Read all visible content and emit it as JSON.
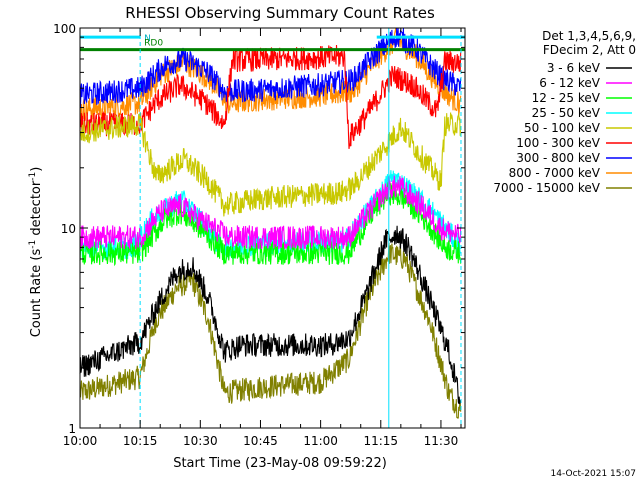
{
  "chart_data": {
    "type": "line",
    "title": "RHESSI Observing Summary Count Rates",
    "xlabel": "Start Time (23-May-08 09:59:22)",
    "ylabel": "Count Rate (s⁻¹ detector⁻¹)",
    "ylabel_base": "Count Rate (s",
    "ylabel_exp1": "-1",
    "ylabel_mid": " detector",
    "ylabel_exp2": "-1",
    "ylabel_end": ")",
    "y_scale": "log",
    "ylim": [
      1,
      100
    ],
    "xlim": [
      "10:00",
      "11:36"
    ],
    "x_ticks": [
      "10:00",
      "10:15",
      "10:30",
      "10:45",
      "11:00",
      "11:15",
      "11:30"
    ],
    "y_ticks": [
      "1",
      "10",
      "100"
    ],
    "footer_date": "14-Oct-2021 15:07",
    "legend_header": [
      "Det 1,3,4,5,6,9,",
      "FDecim 2, Att 0"
    ],
    "flag_labels": [
      "N",
      "RD0"
    ],
    "series": [
      {
        "name": "3 - 6 keV",
        "color": "#000000",
        "points": [
          [
            "10:00",
            2
          ],
          [
            "10:15",
            2.7
          ],
          [
            "10:19",
            4
          ],
          [
            "10:24",
            6
          ],
          [
            "10:28",
            6.5
          ],
          [
            "10:32",
            4.5
          ],
          [
            "10:36",
            2.4
          ],
          [
            "10:40",
            2.6
          ],
          [
            "10:55",
            2.6
          ],
          [
            "11:02",
            2.6
          ],
          [
            "11:07",
            2.8
          ],
          [
            "11:12",
            5
          ],
          [
            "11:16",
            8.5
          ],
          [
            "11:19",
            9.5
          ],
          [
            "11:22",
            8
          ],
          [
            "11:27",
            4.5
          ],
          [
            "11:32",
            2.4
          ],
          [
            "11:35",
            1.3
          ]
        ]
      },
      {
        "name": "6 - 12 keV",
        "color": "#ff00ff",
        "points": [
          [
            "10:00",
            9
          ],
          [
            "10:15",
            9
          ],
          [
            "10:20",
            12
          ],
          [
            "10:25",
            13
          ],
          [
            "10:30",
            11
          ],
          [
            "10:37",
            9
          ],
          [
            "10:45",
            9
          ],
          [
            "11:00",
            9
          ],
          [
            "11:07",
            9
          ],
          [
            "11:12",
            12
          ],
          [
            "11:17",
            16
          ],
          [
            "11:20",
            16
          ],
          [
            "11:25",
            13
          ],
          [
            "11:30",
            10
          ],
          [
            "11:35",
            9
          ]
        ]
      },
      {
        "name": "12 - 25 keV",
        "color": "#00ff00",
        "points": [
          [
            "10:00",
            7.5
          ],
          [
            "10:15",
            7.5
          ],
          [
            "10:21",
            11
          ],
          [
            "10:25",
            12
          ],
          [
            "10:30",
            10
          ],
          [
            "10:36",
            7.5
          ],
          [
            "11:00",
            7.5
          ],
          [
            "11:07",
            7.5
          ],
          [
            "11:13",
            12
          ],
          [
            "11:17",
            15
          ],
          [
            "11:21",
            14
          ],
          [
            "11:26",
            11
          ],
          [
            "11:31",
            8
          ],
          [
            "11:35",
            7.5
          ]
        ]
      },
      {
        "name": "25 - 50 keV",
        "color": "#00ffff",
        "points": [
          [
            "10:00",
            8
          ],
          [
            "10:13",
            8
          ],
          [
            "10:18",
            11
          ],
          [
            "10:25",
            14
          ],
          [
            "10:30",
            11
          ],
          [
            "10:35",
            8
          ],
          [
            "10:50",
            8.5
          ],
          [
            "11:06",
            8.5
          ],
          [
            "11:13",
            13
          ],
          [
            "11:18",
            18
          ],
          [
            "11:23",
            15
          ],
          [
            "11:28",
            12
          ],
          [
            "11:33",
            9
          ],
          [
            "11:35",
            8
          ]
        ]
      },
      {
        "name": "50 - 100 keV",
        "color": "#c8c800",
        "points": [
          [
            "10:00",
            30
          ],
          [
            "10:15",
            33
          ],
          [
            "10:19",
            18
          ],
          [
            "10:26",
            22
          ],
          [
            "10:32",
            17
          ],
          [
            "10:36",
            13
          ],
          [
            "10:45",
            14
          ],
          [
            "11:05",
            15
          ],
          [
            "11:08",
            16
          ],
          [
            "11:15",
            24
          ],
          [
            "11:20",
            32
          ],
          [
            "11:25",
            23
          ],
          [
            "11:30",
            17
          ],
          [
            "11:31",
            33
          ],
          [
            "11:35",
            33
          ]
        ]
      },
      {
        "name": "100 - 300 keV",
        "color": "#ff0000",
        "points": [
          [
            "10:00",
            33
          ],
          [
            "10:15",
            33
          ],
          [
            "10:19",
            43
          ],
          [
            "10:25",
            52
          ],
          [
            "10:31",
            43
          ],
          [
            "10:36",
            33
          ],
          [
            "10:38",
            69
          ],
          [
            "10:52",
            70
          ],
          [
            "11:06",
            72
          ],
          [
            "11:07",
            28
          ],
          [
            "11:12",
            38
          ],
          [
            "11:18",
            58
          ],
          [
            "11:23",
            52
          ],
          [
            "11:29",
            38
          ],
          [
            "11:31",
            68
          ],
          [
            "11:35",
            67
          ]
        ]
      },
      {
        "name": "300 - 800 keV",
        "color": "#0000ff",
        "points": [
          [
            "10:00",
            46
          ],
          [
            "10:15",
            50
          ],
          [
            "10:21",
            65
          ],
          [
            "10:26",
            70
          ],
          [
            "10:32",
            60
          ],
          [
            "10:36",
            48
          ],
          [
            "10:45",
            49
          ],
          [
            "11:00",
            52
          ],
          [
            "11:08",
            55
          ],
          [
            "11:14",
            75
          ],
          [
            "11:19",
            92
          ],
          [
            "11:24",
            78
          ],
          [
            "11:30",
            57
          ],
          [
            "11:35",
            50
          ]
        ]
      },
      {
        "name": "800 - 7000 keV",
        "color": "#ff8c00",
        "points": [
          [
            "10:00",
            39
          ],
          [
            "10:15",
            42
          ],
          [
            "10:20",
            58
          ],
          [
            "10:26",
            68
          ],
          [
            "10:32",
            56
          ],
          [
            "10:37",
            42
          ],
          [
            "10:45",
            44
          ],
          [
            "11:00",
            46
          ],
          [
            "11:08",
            48
          ],
          [
            "11:14",
            70
          ],
          [
            "11:19",
            88
          ],
          [
            "11:24",
            72
          ],
          [
            "11:30",
            50
          ],
          [
            "11:35",
            41
          ]
        ]
      },
      {
        "name": "7000 - 15000 keV",
        "color": "#808000",
        "points": [
          [
            "10:00",
            1.5
          ],
          [
            "10:15",
            1.8
          ],
          [
            "10:19",
            3.5
          ],
          [
            "10:24",
            5
          ],
          [
            "10:28",
            5.5
          ],
          [
            "10:32",
            3.5
          ],
          [
            "10:36",
            1.5
          ],
          [
            "10:45",
            1.6
          ],
          [
            "11:00",
            1.7
          ],
          [
            "11:07",
            2.2
          ],
          [
            "11:12",
            4.5
          ],
          [
            "11:17",
            7.5
          ],
          [
            "11:21",
            7
          ],
          [
            "11:27",
            3.5
          ],
          [
            "11:32",
            1.5
          ],
          [
            "11:35",
            1.2
          ]
        ]
      }
    ],
    "flags": [
      {
        "name": "N",
        "color": "#00e0ff",
        "segments": [
          [
            "10:00",
            "10:15",
            90
          ],
          [
            "11:14",
            "11:36",
            90
          ]
        ]
      },
      {
        "name": "RD0",
        "color": "#008000",
        "segments": [
          [
            "10:00",
            "11:36",
            78
          ]
        ]
      }
    ],
    "vertical_markers": [
      {
        "time": "10:00",
        "color": "#00e0ff",
        "style": "solid"
      },
      {
        "time": "10:15",
        "color": "#00e0ff",
        "style": "dashed"
      },
      {
        "time": "11:17",
        "color": "#00e0ff",
        "style": "solid"
      },
      {
        "time": "11:35",
        "color": "#00e0ff",
        "style": "dashed"
      }
    ]
  }
}
